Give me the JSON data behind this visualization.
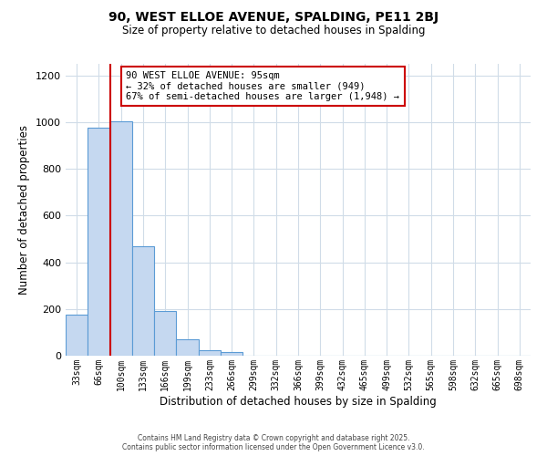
{
  "title": "90, WEST ELLOE AVENUE, SPALDING, PE11 2BJ",
  "subtitle": "Size of property relative to detached houses in Spalding",
  "xlabel": "Distribution of detached houses by size in Spalding",
  "ylabel": "Number of detached properties",
  "bar_labels": [
    "33sqm",
    "66sqm",
    "100sqm",
    "133sqm",
    "166sqm",
    "199sqm",
    "233sqm",
    "266sqm",
    "299sqm",
    "332sqm",
    "366sqm",
    "399sqm",
    "432sqm",
    "465sqm",
    "499sqm",
    "532sqm",
    "565sqm",
    "598sqm",
    "632sqm",
    "665sqm",
    "698sqm"
  ],
  "bar_values": [
    175,
    975,
    1005,
    470,
    192,
    70,
    22,
    15,
    0,
    0,
    0,
    0,
    0,
    0,
    0,
    0,
    0,
    0,
    0,
    0,
    0
  ],
  "bar_color": "#c5d8f0",
  "bar_edge_color": "#5b9bd5",
  "ylim": [
    0,
    1250
  ],
  "yticks": [
    0,
    200,
    400,
    600,
    800,
    1000,
    1200
  ],
  "property_line_x": 1.5,
  "property_line_color": "#cc0000",
  "annotation_title": "90 WEST ELLOE AVENUE: 95sqm",
  "annotation_line1": "← 32% of detached houses are smaller (949)",
  "annotation_line2": "67% of semi-detached houses are larger (1,948) →",
  "annotation_box_color": "#ffffff",
  "annotation_box_edge": "#cc0000",
  "footer_line1": "Contains HM Land Registry data © Crown copyright and database right 2025.",
  "footer_line2": "Contains public sector information licensed under the Open Government Licence v3.0.",
  "background_color": "#ffffff",
  "grid_color": "#d0dce8"
}
